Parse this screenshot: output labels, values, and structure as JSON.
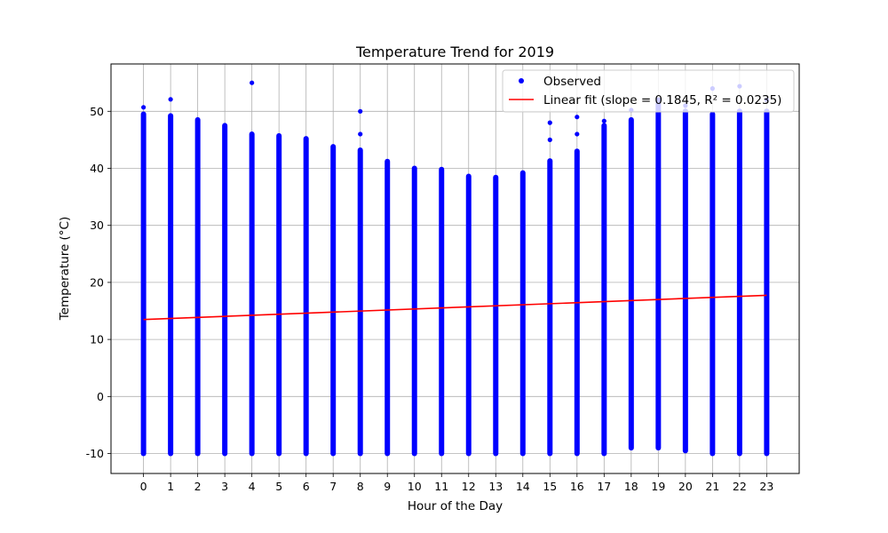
{
  "chart_data": {
    "type": "scatter",
    "title": "Temperature Trend for 2019",
    "xlabel": "Hour of the Day",
    "ylabel": "Temperature (°C)",
    "xlim": [
      -1.2,
      24.2
    ],
    "ylim": [
      -13.5,
      58.3
    ],
    "x_ticks": [
      0,
      1,
      2,
      3,
      4,
      5,
      6,
      7,
      8,
      9,
      10,
      11,
      12,
      13,
      14,
      15,
      16,
      17,
      18,
      19,
      20,
      21,
      22,
      23
    ],
    "y_ticks": [
      -10,
      0,
      10,
      20,
      30,
      40,
      50
    ],
    "grid": true,
    "legend_position": "top-right",
    "colors": {
      "observed": "#0000ff",
      "fit": "#ff0000",
      "grid": "#b0b0b0"
    },
    "series": [
      {
        "name": "Observed",
        "kind": "scatter",
        "hour_ranges": [
          {
            "x": 0,
            "min": -10,
            "max": 49.5
          },
          {
            "x": 1,
            "min": -10,
            "max": 49.2
          },
          {
            "x": 2,
            "min": -10,
            "max": 48.5
          },
          {
            "x": 3,
            "min": -10,
            "max": 47.5
          },
          {
            "x": 4,
            "min": -10,
            "max": 46.0
          },
          {
            "x": 5,
            "min": -10,
            "max": 45.7
          },
          {
            "x": 6,
            "min": -10,
            "max": 45.2
          },
          {
            "x": 7,
            "min": -10,
            "max": 43.8
          },
          {
            "x": 8,
            "min": -10,
            "max": 43.2
          },
          {
            "x": 9,
            "min": -10,
            "max": 41.2
          },
          {
            "x": 10,
            "min": -10,
            "max": 40.0
          },
          {
            "x": 11,
            "min": -10,
            "max": 39.8
          },
          {
            "x": 12,
            "min": -10,
            "max": 38.6
          },
          {
            "x": 13,
            "min": -10,
            "max": 38.4
          },
          {
            "x": 14,
            "min": -10,
            "max": 39.2
          },
          {
            "x": 15,
            "min": -10,
            "max": 41.3
          },
          {
            "x": 16,
            "min": -10,
            "max": 43.0
          },
          {
            "x": 17,
            "min": -10,
            "max": 47.5
          },
          {
            "x": 18,
            "min": -9,
            "max": 48.5
          },
          {
            "x": 19,
            "min": -9,
            "max": 52.0
          },
          {
            "x": 20,
            "min": -9.5,
            "max": 50.0
          },
          {
            "x": 21,
            "min": -10,
            "max": 49.5
          },
          {
            "x": 22,
            "min": -10,
            "max": 50.0
          },
          {
            "x": 23,
            "min": -10,
            "max": 50.0
          }
        ],
        "outliers": [
          {
            "x": 0,
            "y": 50.7
          },
          {
            "x": 1,
            "y": 52.1
          },
          {
            "x": 4,
            "y": 55.0
          },
          {
            "x": 8,
            "y": 50.0
          },
          {
            "x": 8,
            "y": 46.0
          },
          {
            "x": 15,
            "y": 48.0
          },
          {
            "x": 15,
            "y": 45.0
          },
          {
            "x": 16,
            "y": 49.0
          },
          {
            "x": 16,
            "y": 46.0
          },
          {
            "x": 17,
            "y": 48.3
          },
          {
            "x": 18,
            "y": 50.2
          },
          {
            "x": 20,
            "y": 51.0
          },
          {
            "x": 21,
            "y": 54.0
          },
          {
            "x": 22,
            "y": 54.4
          },
          {
            "x": 23,
            "y": 52.0
          }
        ]
      },
      {
        "name": "Linear fit (slope = 0.1845, R² = 0.0235)",
        "kind": "line",
        "x": [
          0,
          23
        ],
        "y": [
          13.5,
          17.74
        ]
      }
    ]
  }
}
